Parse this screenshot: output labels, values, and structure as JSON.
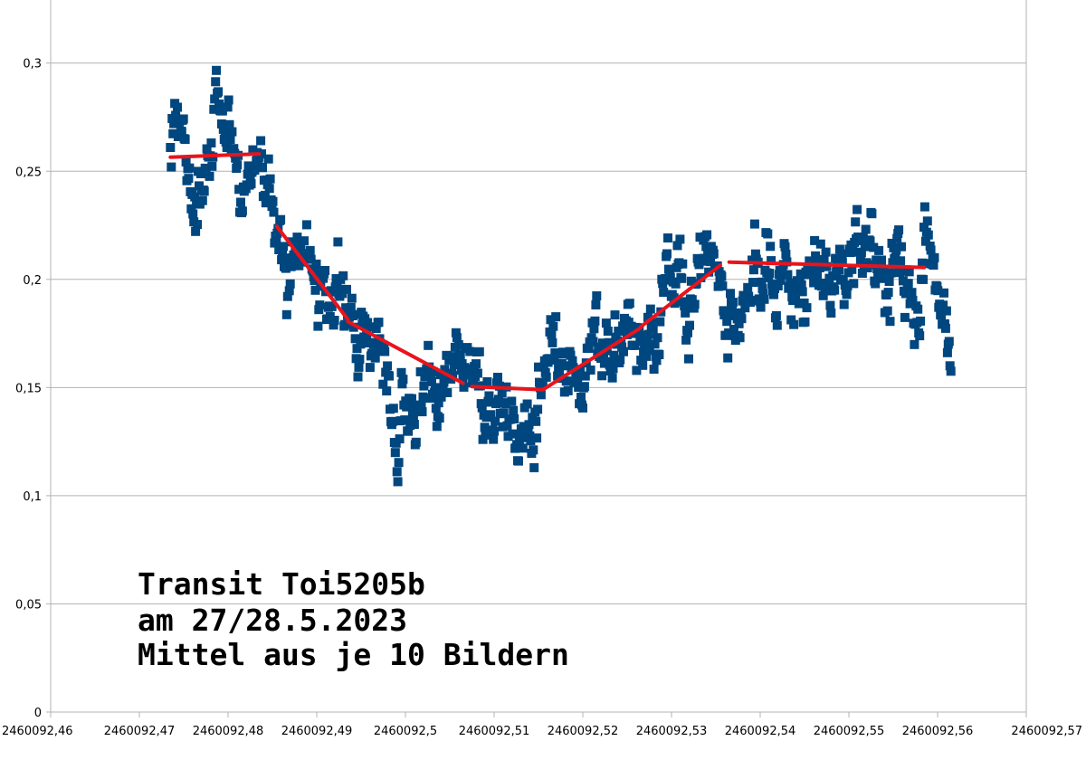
{
  "chart_data": {
    "type": "scatter",
    "title": "",
    "xlabel": "",
    "ylabel": "",
    "xlim": [
      2460092.46,
      2460092.57
    ],
    "ylim": [
      0,
      0.33
    ],
    "grid": {
      "horizontal": true,
      "vertical": false
    },
    "x_ticks": [
      2460092.46,
      2460092.47,
      2460092.48,
      2460092.49,
      2460092.5,
      2460092.51,
      2460092.52,
      2460092.53,
      2460092.54,
      2460092.55,
      2460092.56,
      2460092.57
    ],
    "x_tick_labels": [
      "2460092,46",
      "2460092,47",
      "2460092,48",
      "2460092,49",
      "2460092,5",
      "2460092,51",
      "2460092,52",
      "2460092,53",
      "2460092,54",
      "2460092,55",
      "2460092,56",
      "2460092,57"
    ],
    "y_ticks": [
      0,
      0.05,
      0.1,
      0.15,
      0.2,
      0.25,
      0.3
    ],
    "y_tick_labels": [
      "0",
      "0,05",
      "0,1",
      "0,15",
      "0,2",
      "0,25",
      "0,3"
    ],
    "annotation_lines": [
      "Transit Toi5205b",
      "am 27/28.5.2023",
      "Mittel aus je 10 Bildern"
    ],
    "marker_color": "#00467f",
    "fit_color": "#e8141c",
    "grid_color": "#b3b3b3",
    "data_profile": {
      "x_start": 2460092.4735,
      "x_end": 2460092.5615,
      "approx_point_count": 900,
      "level_x": [
        2460092.4735,
        2460092.484,
        2460092.486,
        2460092.49,
        2460092.4935,
        2460092.5,
        2460092.5075,
        2460092.512,
        2460092.5155,
        2460092.52,
        2460092.5265,
        2460092.531,
        2460092.5355,
        2460092.545,
        2460092.5545,
        2460092.5615
      ],
      "level_y": [
        0.257,
        0.258,
        0.228,
        0.205,
        0.18,
        0.168,
        0.152,
        0.14,
        0.15,
        0.165,
        0.178,
        0.19,
        0.207,
        0.207,
        0.207,
        0.195
      ],
      "scatter_sd": 0.013
    },
    "series": [
      {
        "kind": "fit",
        "segments": [
          {
            "x": [
              2460092.4735,
              2460092.4835
            ],
            "y": [
              0.2565,
              0.258
            ]
          },
          {
            "x": [
              2460092.4855,
              2460092.4935
            ],
            "y": [
              0.2245,
              0.1815
            ]
          },
          {
            "x": [
              2460092.4935,
              2460092.5065
            ],
            "y": [
              0.1805,
              0.152
            ]
          },
          {
            "x": [
              2460092.5075,
              2460092.5155
            ],
            "y": [
              0.1505,
              0.149
            ]
          },
          {
            "x": [
              2460092.5155,
              2460092.5265
            ],
            "y": [
              0.149,
              0.1775
            ]
          },
          {
            "x": [
              2460092.5265,
              2460092.5355
            ],
            "y": [
              0.178,
              0.2065
            ]
          },
          {
            "x": [
              2460092.5365,
              2460092.5585
            ],
            "y": [
              0.208,
              0.2055
            ]
          }
        ]
      }
    ]
  }
}
